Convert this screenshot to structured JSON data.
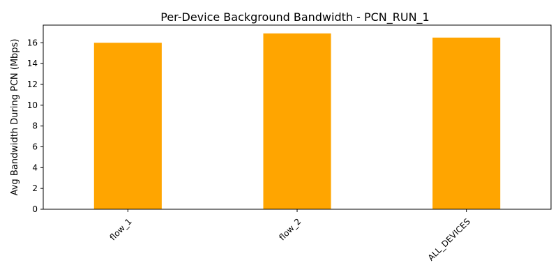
{
  "chart_data": {
    "type": "bar",
    "title": "Per-Device Background Bandwidth - PCN_RUN_1",
    "xlabel": "",
    "ylabel": "Avg Bandwidth During PCN (Mbps)",
    "categories": [
      "flow_1",
      "flow_2",
      "ALL_DEVICES"
    ],
    "values": [
      16.0,
      16.9,
      16.5
    ],
    "ylim": [
      0,
      17.7
    ],
    "yticks": [
      0,
      2,
      4,
      6,
      8,
      10,
      12,
      14,
      16
    ],
    "ytick_labels": [
      "0",
      "2",
      "4",
      "6",
      "8",
      "10",
      "12",
      "14",
      "16"
    ],
    "bar_color": "#ffa500",
    "xtick_rotation": 45,
    "grid": false,
    "legend": "none"
  }
}
